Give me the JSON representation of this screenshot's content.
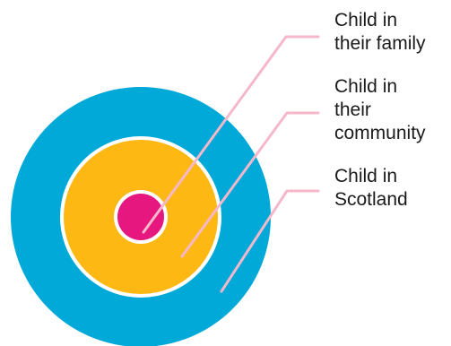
{
  "diagram": {
    "rings": [
      {
        "name": "Child in Scotland",
        "color": "#00A9D8"
      },
      {
        "name": "Child in their community",
        "color": "#FDB813"
      },
      {
        "name": "Child in their family",
        "color": "#E6177F"
      }
    ],
    "separator_color": "#ffffff",
    "leader_color": "#F5B8CB",
    "labels": {
      "family": [
        "Child in",
        "their family"
      ],
      "community": [
        "Child in",
        "their",
        "community"
      ],
      "scotland": [
        "Child in",
        "Scotland"
      ]
    }
  }
}
